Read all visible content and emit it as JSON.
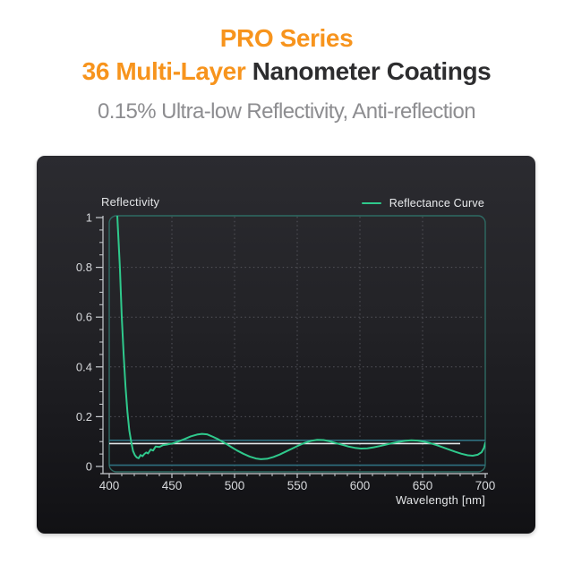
{
  "header": {
    "line1": "PRO Series",
    "line2_highlight": "36 Multi-Layer",
    "line2_rest": " Nanometer Coatings",
    "subtitle": "0.15% Ultra-low Reflectivity, Anti-reflection",
    "accent_color": "#F7941D",
    "dark_text_color": "#2D2D2F",
    "subtitle_color": "#8D8D90"
  },
  "chart": {
    "y_axis_title": "Reflectivity",
    "x_axis_title": "Wavelength [nm]",
    "legend_label": "Reflectance Curve"
  },
  "chart_data": {
    "type": "line",
    "title": "",
    "xlabel": "Wavelength [nm]",
    "ylabel": "Reflectivity",
    "xlim": [
      400,
      700
    ],
    "ylim": [
      0,
      1
    ],
    "x_ticks": [
      400,
      450,
      500,
      550,
      600,
      650,
      700
    ],
    "x_tick_labels": [
      "400",
      "450",
      "500",
      "550",
      "600",
      "650",
      "700"
    ],
    "x_minor_step": 10,
    "y_ticks": [
      0,
      0.2,
      0.4,
      0.6,
      0.8,
      1
    ],
    "y_tick_labels": [
      "0",
      "0.2",
      "0.4",
      "0.6",
      "0.8",
      "1"
    ],
    "y_minor_step": 0.05,
    "grid": "dotted",
    "legend_position": "top-right",
    "series": [
      {
        "name": "Reflectance Curve",
        "color": "#2FC98C",
        "points": [
          [
            406,
            1.05
          ],
          [
            408.5,
            0.8
          ],
          [
            410,
            0.6
          ],
          [
            411.5,
            0.45
          ],
          [
            413,
            0.32
          ],
          [
            414.5,
            0.22
          ],
          [
            416,
            0.145
          ],
          [
            417.5,
            0.1
          ],
          [
            419,
            0.062
          ],
          [
            420.5,
            0.045
          ],
          [
            422,
            0.036
          ],
          [
            423.5,
            0.033
          ],
          [
            425,
            0.046
          ],
          [
            426.5,
            0.041
          ],
          [
            428,
            0.05
          ],
          [
            429.5,
            0.056
          ],
          [
            431,
            0.052
          ],
          [
            433,
            0.068
          ],
          [
            435,
            0.064
          ],
          [
            437,
            0.08
          ],
          [
            440,
            0.078
          ],
          [
            443,
            0.086
          ],
          [
            446,
            0.088
          ],
          [
            450,
            0.092
          ],
          [
            455,
            0.1
          ],
          [
            460,
            0.11
          ],
          [
            465,
            0.121
          ],
          [
            470,
            0.128
          ],
          [
            474,
            0.131
          ],
          [
            478,
            0.129
          ],
          [
            482,
            0.121
          ],
          [
            487,
            0.109
          ],
          [
            492,
            0.095
          ],
          [
            497,
            0.079
          ],
          [
            502,
            0.064
          ],
          [
            507,
            0.051
          ],
          [
            512,
            0.04
          ],
          [
            517,
            0.032
          ],
          [
            521,
            0.029
          ],
          [
            526,
            0.031
          ],
          [
            531,
            0.038
          ],
          [
            536,
            0.048
          ],
          [
            541,
            0.06
          ],
          [
            546,
            0.072
          ],
          [
            551,
            0.084
          ],
          [
            556,
            0.095
          ],
          [
            561,
            0.103
          ],
          [
            566,
            0.107
          ],
          [
            571,
            0.106
          ],
          [
            576,
            0.101
          ],
          [
            581,
            0.094
          ],
          [
            586,
            0.087
          ],
          [
            591,
            0.08
          ],
          [
            596,
            0.075
          ],
          [
            601,
            0.072
          ],
          [
            606,
            0.073
          ],
          [
            611,
            0.077
          ],
          [
            616,
            0.082
          ],
          [
            621,
            0.088
          ],
          [
            626,
            0.094
          ],
          [
            631,
            0.099
          ],
          [
            636,
            0.103
          ],
          [
            641,
            0.105
          ],
          [
            646,
            0.104
          ],
          [
            651,
            0.1
          ],
          [
            656,
            0.094
          ],
          [
            661,
            0.086
          ],
          [
            666,
            0.077
          ],
          [
            671,
            0.068
          ],
          [
            676,
            0.059
          ],
          [
            681,
            0.051
          ],
          [
            686,
            0.045
          ],
          [
            690,
            0.043
          ],
          [
            694,
            0.047
          ],
          [
            697,
            0.057
          ],
          [
            699,
            0.075
          ],
          [
            700,
            0.095
          ]
        ]
      }
    ],
    "reference_lines": [
      {
        "name": "reflectivity-target-line",
        "value": 0.105,
        "x_range": [
          400,
          700
        ],
        "color": "#2F7080"
      },
      {
        "name": "mean-reflectivity-line",
        "value": 0.092,
        "x_range": [
          400,
          680
        ],
        "color": "#E3E6E8"
      },
      {
        "name": "baseline-zero-line",
        "value": 0.005,
        "x_range": [
          400,
          700
        ],
        "color": "#2F7080"
      }
    ],
    "colors": {
      "plot_border": "#2E6A63",
      "grid_dots": "#54545B",
      "axis_line": "#C9CDD1",
      "tick_label": "#D7D9DC",
      "curve": "#2FC98C"
    }
  }
}
